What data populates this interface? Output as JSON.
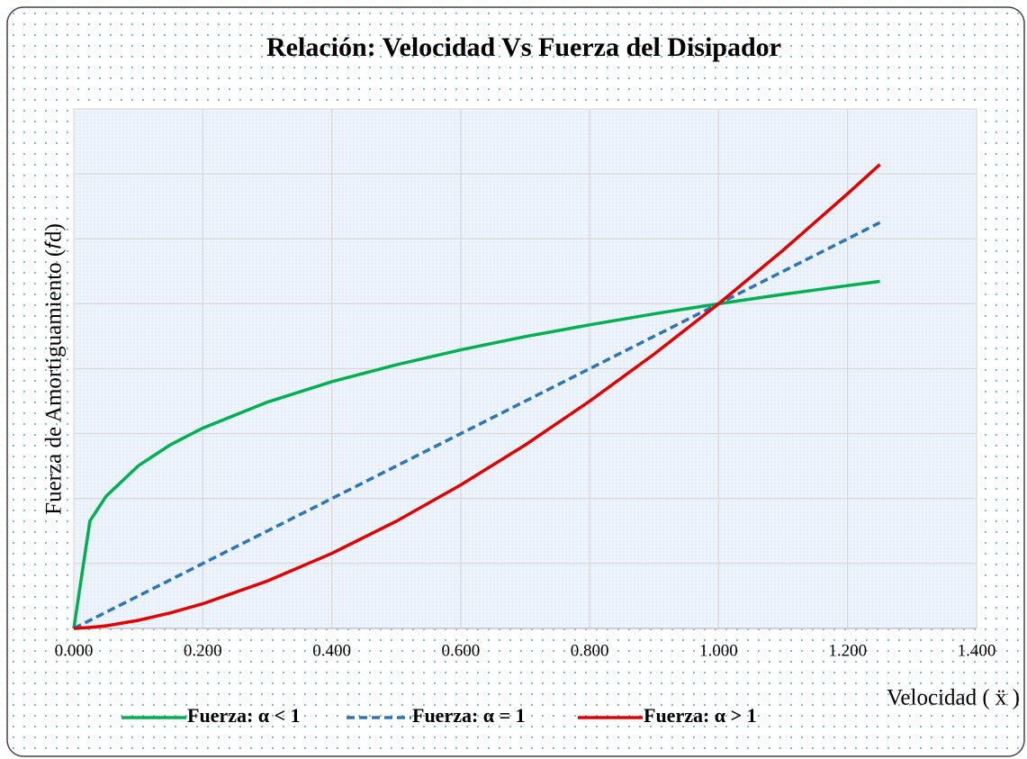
{
  "chart_data": {
    "type": "line",
    "title": "Relación: Velocidad Vs Fuerza del Disipador",
    "x_label": "Velocidad ( ẍ )",
    "y_label": "Fuerza de Amortiguamiento (𝑓d)",
    "x": [
      0,
      0.025,
      0.05,
      0.1,
      0.15,
      0.2,
      0.3,
      0.4,
      0.5,
      0.6,
      0.7,
      0.8,
      0.9,
      1.0,
      1.1,
      1.2,
      1.25
    ],
    "series": [
      {
        "name": "Fuerza: α < 1",
        "color": "#00b050",
        "dash": false,
        "values": [
          0,
          0.331,
          0.407,
          0.501,
          0.566,
          0.617,
          0.697,
          0.76,
          0.812,
          0.858,
          0.899,
          0.935,
          0.969,
          1.0,
          1.029,
          1.056,
          1.069
        ]
      },
      {
        "name": "Fuerza: α = 1",
        "color": "#2e75b6",
        "dash": true,
        "values": [
          0,
          0.025,
          0.05,
          0.1,
          0.15,
          0.2,
          0.3,
          0.4,
          0.5,
          0.6,
          0.7,
          0.8,
          0.9,
          1.0,
          1.1,
          1.2,
          1.25
        ]
      },
      {
        "name": "Fuerza: α > 1",
        "color": "#e00000",
        "dash": false,
        "values": [
          0,
          0.003,
          0.008,
          0.025,
          0.048,
          0.076,
          0.146,
          0.231,
          0.33,
          0.442,
          0.565,
          0.7,
          0.845,
          1.0,
          1.165,
          1.339,
          1.429
        ]
      }
    ],
    "xlim": [
      0,
      1.4
    ],
    "xticks": [
      {
        "value": 0,
        "label": "0.000"
      },
      {
        "value": 0.2,
        "label": "0.200"
      },
      {
        "value": 0.4,
        "label": "0.400"
      },
      {
        "value": 0.6,
        "label": "0.600"
      },
      {
        "value": 0.8,
        "label": "0.800"
      },
      {
        "value": 1.0,
        "label": "1.000"
      },
      {
        "value": 1.2,
        "label": "1.200"
      },
      {
        "value": 1.4,
        "label": "1.400"
      }
    ],
    "ylim": [
      0,
      1.6
    ],
    "yticks": [
      0,
      0.2,
      0.4,
      0.6,
      0.8,
      1.0,
      1.2,
      1.4,
      1.6
    ],
    "grid": true,
    "legend": "bottom"
  }
}
